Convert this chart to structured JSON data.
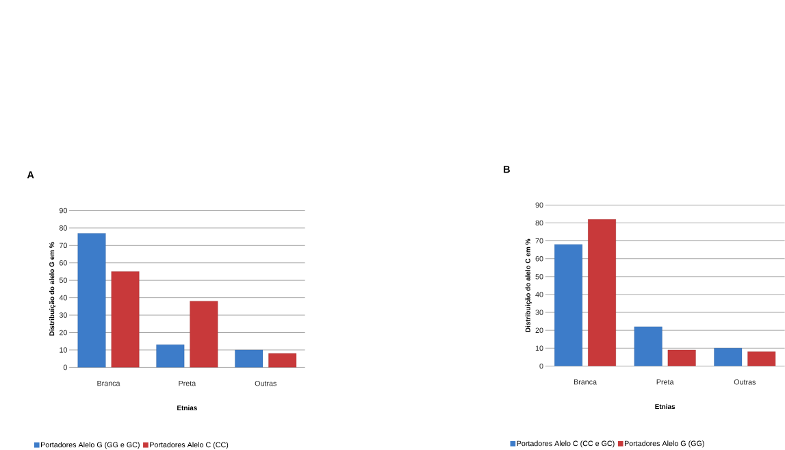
{
  "chart_data": [
    {
      "type": "bar",
      "title": "A",
      "xlabel": "Etnias",
      "ylabel": "Distribuição  do alelo G em %",
      "categories": [
        "Branca",
        "Preta",
        "Outras"
      ],
      "series": [
        {
          "name": "Portadores Alelo G (GG e GC)",
          "color": "#3d7cc9",
          "values": [
            77,
            13,
            10
          ]
        },
        {
          "name": "Portadores Alelo C (CC)",
          "color": "#c8393a",
          "values": [
            55,
            38,
            8
          ]
        }
      ],
      "ylim": [
        0,
        90
      ],
      "yticks": [
        0,
        10,
        20,
        30,
        40,
        50,
        60,
        70,
        80,
        90
      ],
      "grid": "y",
      "legend": "bottom"
    },
    {
      "type": "bar",
      "title": "B",
      "xlabel": "Etnias",
      "ylabel": "Distribuição  do alelo C em %",
      "categories": [
        "Branca",
        "Preta",
        "Outras"
      ],
      "series": [
        {
          "name": "Portadores Alelo C (CC e GC)",
          "color": "#3d7cc9",
          "values": [
            68,
            22,
            10
          ]
        },
        {
          "name": "Portadores Alelo G (GG)",
          "color": "#c8393a",
          "values": [
            82,
            9,
            8
          ]
        }
      ],
      "ylim": [
        0,
        90
      ],
      "yticks": [
        0,
        10,
        20,
        30,
        40,
        50,
        60,
        70,
        80,
        90
      ],
      "grid": "y",
      "legend": "bottom"
    }
  ]
}
